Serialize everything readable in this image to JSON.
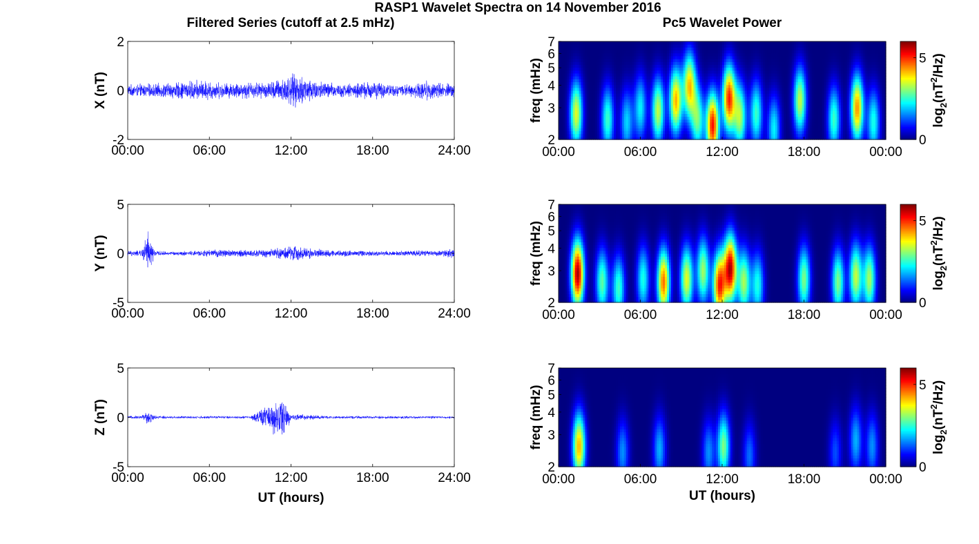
{
  "figure": {
    "title": "RASP1 Wavelet Spectra on 14 November 2016",
    "left_title": "Filtered Series (cutoff at 2.5 mHz)",
    "right_title": "Pc5 Wavelet Power"
  },
  "colors": {
    "trace": "#0000ff",
    "axis": "#000000",
    "background": "#ffffff"
  },
  "chart_data": [
    {
      "type": "line",
      "ylabel": "X (nT)",
      "xlabel": "",
      "xlim": [
        0,
        24
      ],
      "ylim": [
        -2,
        2
      ],
      "x_ticks": [
        "00:00",
        "06:00",
        "12:00",
        "18:00",
        "24:00"
      ],
      "y_ticks": [
        "-2",
        "0",
        "2"
      ],
      "envelope": {
        "hours": [
          0,
          1,
          2,
          3,
          4,
          5,
          6,
          7,
          8,
          9,
          10,
          11,
          12,
          13,
          14,
          15,
          16,
          17,
          18,
          19,
          20,
          21,
          22,
          23,
          24
        ],
        "amplitude_nT": [
          0.25,
          0.3,
          0.3,
          0.35,
          0.4,
          0.45,
          0.45,
          0.35,
          0.35,
          0.4,
          0.35,
          0.5,
          0.75,
          0.65,
          0.45,
          0.35,
          0.3,
          0.35,
          0.45,
          0.3,
          0.25,
          0.3,
          0.45,
          0.35,
          0.3
        ]
      }
    },
    {
      "type": "line",
      "ylabel": "Y (nT)",
      "xlabel": "",
      "xlim": [
        0,
        24
      ],
      "ylim": [
        -5,
        5
      ],
      "x_ticks": [
        "00:00",
        "06:00",
        "12:00",
        "18:00",
        "24:00"
      ],
      "y_ticks": [
        "-5",
        "0",
        "5"
      ],
      "envelope": {
        "hours": [
          0,
          1,
          1.5,
          2,
          3,
          4,
          5,
          6,
          7,
          8,
          9,
          10,
          11,
          12,
          13,
          14,
          15,
          16,
          17,
          18,
          19,
          20,
          21,
          22,
          23,
          24
        ],
        "amplitude_nT": [
          0.3,
          0.35,
          2.5,
          0.3,
          0.2,
          0.25,
          0.3,
          0.4,
          0.45,
          0.4,
          0.4,
          0.45,
          0.6,
          0.9,
          0.7,
          0.5,
          0.4,
          0.35,
          0.35,
          0.3,
          0.3,
          0.3,
          0.35,
          0.35,
          0.3,
          0.6
        ]
      }
    },
    {
      "type": "line",
      "ylabel": "Z (nT)",
      "xlabel": "UT (hours)",
      "xlim": [
        0,
        24
      ],
      "ylim": [
        -5,
        5
      ],
      "x_ticks": [
        "00:00",
        "06:00",
        "12:00",
        "18:00",
        "24:00"
      ],
      "y_ticks": [
        "-5",
        "0",
        "5"
      ],
      "envelope": {
        "hours": [
          0,
          1,
          1.5,
          2,
          3,
          6,
          9,
          11.5,
          12,
          12.5,
          15,
          18,
          21,
          24
        ],
        "amplitude_nT": [
          0.15,
          0.2,
          0.8,
          0.2,
          0.15,
          0.15,
          0.15,
          2.5,
          0.2,
          0.35,
          0.15,
          0.15,
          0.15,
          0.15
        ]
      }
    },
    {
      "type": "heatmap",
      "ylabel": "freq (mHz)",
      "xlabel": "",
      "xlim": [
        0,
        24
      ],
      "ylim": [
        2,
        7
      ],
      "yscale": "log",
      "x_ticks": [
        "00:00",
        "06:00",
        "12:00",
        "18:00",
        "00:00"
      ],
      "y_ticks": [
        "2",
        "3",
        "4",
        "5",
        "6",
        "7"
      ],
      "colorbar": {
        "label": "log2(nT2/Hz)",
        "range": [
          0,
          6
        ],
        "ticks": [
          "0",
          "5"
        ]
      },
      "peaks": [
        {
          "t": 1.3,
          "f": 2.8,
          "p": 3.6
        },
        {
          "t": 3.6,
          "f": 2.6,
          "p": 2.6
        },
        {
          "t": 5.0,
          "f": 2.5,
          "p": 2.0
        },
        {
          "t": 6.0,
          "f": 3.0,
          "p": 2.2
        },
        {
          "t": 7.3,
          "f": 2.9,
          "p": 3.4
        },
        {
          "t": 8.6,
          "f": 3.3,
          "p": 4.2
        },
        {
          "t": 9.6,
          "f": 4.0,
          "p": 4.0
        },
        {
          "t": 10.2,
          "f": 2.6,
          "p": 2.8
        },
        {
          "t": 11.3,
          "f": 2.4,
          "p": 5.2
        },
        {
          "t": 12.5,
          "f": 3.4,
          "p": 5.0
        },
        {
          "t": 13.3,
          "f": 2.7,
          "p": 3.2
        },
        {
          "t": 14.5,
          "f": 2.8,
          "p": 2.6
        },
        {
          "t": 15.8,
          "f": 2.3,
          "p": 2.2
        },
        {
          "t": 17.7,
          "f": 3.3,
          "p": 3.4
        },
        {
          "t": 20.2,
          "f": 2.6,
          "p": 2.6
        },
        {
          "t": 21.9,
          "f": 3.0,
          "p": 4.4
        },
        {
          "t": 23.1,
          "f": 2.5,
          "p": 2.4
        }
      ]
    },
    {
      "type": "heatmap",
      "ylabel": "freq (mHz)",
      "xlabel": "",
      "xlim": [
        0,
        24
      ],
      "ylim": [
        2,
        7
      ],
      "yscale": "log",
      "x_ticks": [
        "00:00",
        "06:00",
        "12:00",
        "18:00",
        "00:00"
      ],
      "y_ticks": [
        "2",
        "3",
        "4",
        "5",
        "6",
        "7"
      ],
      "colorbar": {
        "label": "log2(nT2/Hz)",
        "range": [
          0,
          6
        ],
        "ticks": [
          "0",
          "5"
        ]
      },
      "peaks": [
        {
          "t": 1.4,
          "f": 2.9,
          "p": 5.8
        },
        {
          "t": 3.2,
          "f": 2.6,
          "p": 2.8
        },
        {
          "t": 4.4,
          "f": 2.4,
          "p": 2.6
        },
        {
          "t": 6.2,
          "f": 2.7,
          "p": 2.4
        },
        {
          "t": 7.7,
          "f": 2.6,
          "p": 4.6
        },
        {
          "t": 9.4,
          "f": 2.7,
          "p": 3.6
        },
        {
          "t": 10.6,
          "f": 3.0,
          "p": 3.2
        },
        {
          "t": 11.8,
          "f": 2.5,
          "p": 5.0
        },
        {
          "t": 12.6,
          "f": 3.1,
          "p": 5.6
        },
        {
          "t": 13.6,
          "f": 2.6,
          "p": 3.2
        },
        {
          "t": 14.6,
          "f": 2.5,
          "p": 2.4
        },
        {
          "t": 18.0,
          "f": 2.7,
          "p": 3.0
        },
        {
          "t": 20.5,
          "f": 2.6,
          "p": 3.0
        },
        {
          "t": 21.8,
          "f": 2.8,
          "p": 3.4
        },
        {
          "t": 22.8,
          "f": 2.7,
          "p": 3.2
        }
      ]
    },
    {
      "type": "heatmap",
      "ylabel": "freq (mHz)",
      "xlabel": "UT (hours)",
      "xlim": [
        0,
        24
      ],
      "ylim": [
        2,
        7
      ],
      "yscale": "log",
      "x_ticks": [
        "00:00",
        "06:00",
        "12:00",
        "18:00",
        "00:00"
      ],
      "y_ticks": [
        "2",
        "3",
        "4",
        "5",
        "6",
        "7"
      ],
      "colorbar": {
        "label": "log2(nT2/Hz)",
        "range": [
          0,
          6
        ],
        "ticks": [
          "0",
          "5"
        ]
      },
      "peaks": [
        {
          "t": 1.5,
          "f": 2.6,
          "p": 4.2
        },
        {
          "t": 4.7,
          "f": 2.4,
          "p": 1.6
        },
        {
          "t": 7.4,
          "f": 2.5,
          "p": 1.8
        },
        {
          "t": 11.0,
          "f": 2.4,
          "p": 1.6
        },
        {
          "t": 12.1,
          "f": 2.6,
          "p": 3.0
        },
        {
          "t": 14.0,
          "f": 2.3,
          "p": 1.4
        },
        {
          "t": 20.3,
          "f": 2.4,
          "p": 1.2
        },
        {
          "t": 21.8,
          "f": 2.8,
          "p": 1.8
        },
        {
          "t": 23.0,
          "f": 2.6,
          "p": 1.6
        }
      ]
    }
  ]
}
